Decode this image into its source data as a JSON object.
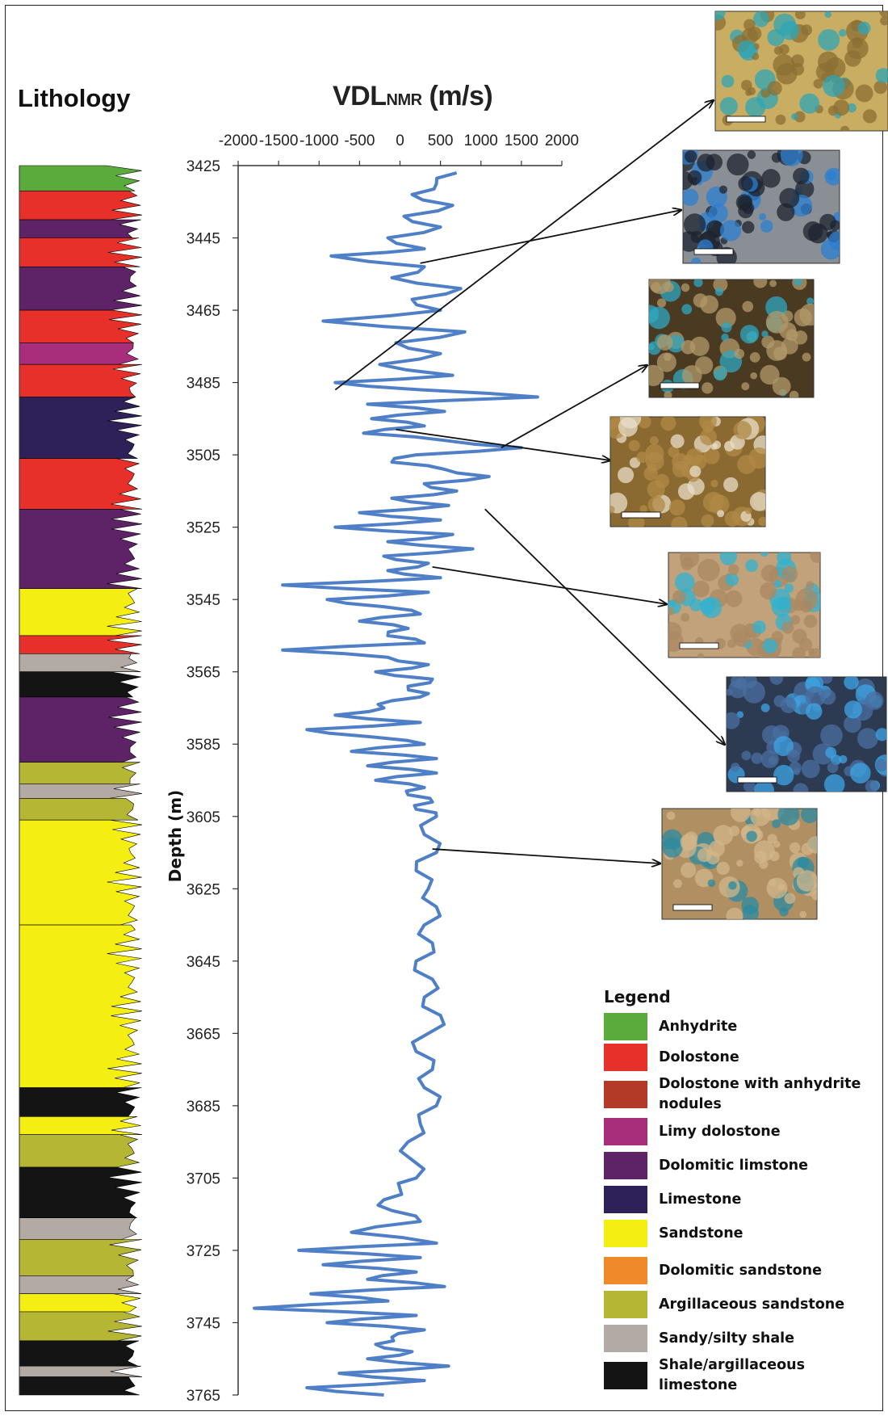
{
  "lithology_title": "Lithology",
  "chart_data": {
    "type": "line",
    "title": "VDL",
    "title_subscript": "NMR",
    "title_unit": " (m/s)",
    "ylabel": "Depth (m)",
    "xlim": [
      -2000,
      2000
    ],
    "ylim": [
      3425,
      3765
    ],
    "x_ticks": [
      "-2000",
      "-1500",
      "-1000",
      "-500",
      "0",
      "500",
      "1000",
      "1500",
      "2000"
    ],
    "y_ticks": [
      "3425",
      "3445",
      "3465",
      "3485",
      "3505",
      "3525",
      "3545",
      "3565",
      "3585",
      "3605",
      "3625",
      "3645",
      "3665",
      "3685",
      "3705",
      "3725",
      "3745",
      "3765"
    ],
    "series": [
      {
        "color": "#4f7fc6",
        "depth": [
          3427,
          3430,
          3433,
          3436,
          3439,
          3442,
          3445,
          3448,
          3450,
          3453,
          3456,
          3459,
          3462,
          3465,
          3468,
          3471,
          3474,
          3477,
          3480,
          3483,
          3485,
          3487,
          3489,
          3491,
          3493,
          3495,
          3497,
          3499,
          3501,
          3503,
          3505,
          3507,
          3509,
          3511,
          3513,
          3515,
          3517,
          3519,
          3521,
          3523,
          3525,
          3527,
          3529,
          3531,
          3533,
          3535,
          3537,
          3539,
          3541,
          3543,
          3545,
          3547,
          3549,
          3551,
          3553,
          3555,
          3557,
          3559,
          3561,
          3563,
          3565,
          3567,
          3569,
          3571,
          3573,
          3575,
          3577,
          3579,
          3581,
          3583,
          3585,
          3587,
          3589,
          3591,
          3593,
          3595,
          3597,
          3599,
          3601,
          3603,
          3605,
          3610,
          3615,
          3620,
          3625,
          3630,
          3635,
          3640,
          3645,
          3650,
          3655,
          3660,
          3665,
          3670,
          3675,
          3680,
          3685,
          3690,
          3695,
          3700,
          3705,
          3708,
          3711,
          3714,
          3717,
          3720,
          3723,
          3725,
          3727,
          3729,
          3731,
          3733,
          3735,
          3737,
          3739,
          3741,
          3743,
          3745,
          3747,
          3749,
          3751,
          3753,
          3755,
          3757,
          3759,
          3761,
          3763,
          3765
        ],
        "vdl": [
          700,
          450,
          150,
          650,
          50,
          500,
          -150,
          300,
          -850,
          300,
          -100,
          750,
          150,
          500,
          -950,
          800,
          -50,
          500,
          -250,
          650,
          -800,
          250,
          1700,
          -400,
          550,
          -350,
          300,
          -450,
          550,
          1500,
          200,
          -100,
          550,
          1100,
          300,
          700,
          -100,
          600,
          -500,
          500,
          -800,
          650,
          -150,
          900,
          -200,
          350,
          -150,
          500,
          -1450,
          350,
          -900,
          -200,
          250,
          -500,
          100,
          -150,
          300,
          -1450,
          -150,
          350,
          -300,
          400,
          100,
          350,
          -100,
          -200,
          -800,
          250,
          -1150,
          -350,
          300,
          -600,
          450,
          -400,
          450,
          -300,
          300,
          100,
          400,
          200,
          450,
          300,
          450,
          200,
          350,
          450,
          300,
          400,
          200,
          400,
          300,
          500,
          350,
          200,
          400,
          300,
          450,
          250,
          100,
          150,
          200,
          0,
          -200,
          -100,
          250,
          -600,
          450,
          -1250,
          250,
          -950,
          200,
          -400,
          550,
          -1100,
          -150,
          -1800,
          200,
          -900,
          300,
          -100,
          -300,
          150,
          -400,
          600,
          -750,
          300,
          -1150,
          -200,
          -1200,
          -500
        ]
      }
    ],
    "lithology_units": [
      {
        "top": 3425,
        "bottom": 3432,
        "unit": "Anhydrite"
      },
      {
        "top": 3432,
        "bottom": 3440,
        "unit": "Dolostone"
      },
      {
        "top": 3440,
        "bottom": 3445,
        "unit": "Dolomitic limstone"
      },
      {
        "top": 3445,
        "bottom": 3453,
        "unit": "Dolostone"
      },
      {
        "top": 3453,
        "bottom": 3465,
        "unit": "Dolomitic limstone"
      },
      {
        "top": 3465,
        "bottom": 3474,
        "unit": "Dolostone"
      },
      {
        "top": 3474,
        "bottom": 3480,
        "unit": "Limy dolostone"
      },
      {
        "top": 3480,
        "bottom": 3489,
        "unit": "Dolostone"
      },
      {
        "top": 3489,
        "bottom": 3506,
        "unit": "Limestone"
      },
      {
        "top": 3506,
        "bottom": 3520,
        "unit": "Dolostone"
      },
      {
        "top": 3520,
        "bottom": 3542,
        "unit": "Dolomitic limstone"
      },
      {
        "top": 3542,
        "bottom": 3555,
        "unit": "Sandstone"
      },
      {
        "top": 3555,
        "bottom": 3560,
        "unit": "Dolostone"
      },
      {
        "top": 3560,
        "bottom": 3565,
        "unit": "Sandy/silty shale"
      },
      {
        "top": 3565,
        "bottom": 3572,
        "unit": "Shale/argillaceous limestone"
      },
      {
        "top": 3572,
        "bottom": 3590,
        "unit": "Dolomitic limstone"
      },
      {
        "top": 3590,
        "bottom": 3596,
        "unit": "Argillaceous sandstone"
      },
      {
        "top": 3596,
        "bottom": 3600,
        "unit": "Sandy/silty shale"
      },
      {
        "top": 3600,
        "bottom": 3606,
        "unit": "Argillaceous sandstone"
      },
      {
        "top": 3606,
        "bottom": 3635,
        "unit": "Sandstone"
      },
      {
        "top": 3635,
        "bottom": 3680,
        "unit": "Sandstone"
      },
      {
        "top": 3680,
        "bottom": 3688,
        "unit": "Shale/argillaceous limestone"
      },
      {
        "top": 3688,
        "bottom": 3693,
        "unit": "Sandstone"
      },
      {
        "top": 3693,
        "bottom": 3702,
        "unit": "Argillaceous sandstone"
      },
      {
        "top": 3702,
        "bottom": 3716,
        "unit": "Shale/argillaceous limestone"
      },
      {
        "top": 3716,
        "bottom": 3722,
        "unit": "Sandy/silty shale"
      },
      {
        "top": 3722,
        "bottom": 3732,
        "unit": "Argillaceous sandstone"
      },
      {
        "top": 3732,
        "bottom": 3737,
        "unit": "Sandy/silty shale"
      },
      {
        "top": 3737,
        "bottom": 3742,
        "unit": "Sandstone"
      },
      {
        "top": 3742,
        "bottom": 3750,
        "unit": "Argillaceous sandstone"
      },
      {
        "top": 3750,
        "bottom": 3757,
        "unit": "Shale/argillaceous limestone"
      },
      {
        "top": 3757,
        "bottom": 3760,
        "unit": "Sandy/silty shale"
      },
      {
        "top": 3760,
        "bottom": 3765,
        "unit": "Shale/argillaceous limestone"
      }
    ],
    "photomicrograph_links": [
      {
        "depth": 3487,
        "vdl": -800,
        "photo": 1
      },
      {
        "depth": 3452,
        "vdl": 250,
        "photo": 2
      },
      {
        "depth": 3503,
        "vdl": 1250,
        "photo": 3
      },
      {
        "depth": 3498,
        "vdl": -50,
        "photo": 4
      },
      {
        "depth": 3536,
        "vdl": 400,
        "photo": 5
      },
      {
        "depth": 3520,
        "vdl": 1050,
        "photo": 6
      },
      {
        "depth": 3614,
        "vdl": 400,
        "photo": 7
      }
    ]
  },
  "legend": {
    "title": "Legend",
    "items": [
      {
        "label": "Anhydrite",
        "color": "#5aaa3c"
      },
      {
        "label": "Dolostone",
        "color": "#e8302a"
      },
      {
        "label": "Dolostone with anhydrite nodules",
        "color": "#b23a26"
      },
      {
        "label": "Limy dolostone",
        "color": "#a82e7c"
      },
      {
        "label": "Dolomitic limstone",
        "color": "#5e2366"
      },
      {
        "label": "Limestone",
        "color": "#2e2058"
      },
      {
        "label": "Sandstone",
        "color": "#f5ee12"
      },
      {
        "label": "Dolomitic sandstone",
        "color": "#ef8a2b"
      },
      {
        "label": "Argillaceous sandstone",
        "color": "#b4b634"
      },
      {
        "label": "Sandy/silty shale",
        "color": "#b3aba3"
      },
      {
        "label": "Shale/argillaceous limestone",
        "color": "#141414"
      }
    ]
  },
  "photomicrographs": [
    {
      "id": 1,
      "palette": [
        "#c9ad62",
        "#8b6f33",
        "#2ea6b6"
      ]
    },
    {
      "id": 2,
      "palette": [
        "#8a8f95",
        "#1c2430",
        "#2b7fd0"
      ]
    },
    {
      "id": 3,
      "palette": [
        "#4a3a22",
        "#b39a6a",
        "#2fa8c0"
      ]
    },
    {
      "id": 4,
      "palette": [
        "#8a6a30",
        "#b08a46",
        "#e8dfc8"
      ]
    },
    {
      "id": 5,
      "palette": [
        "#c2a27a",
        "#a98863",
        "#2fb2d2"
      ]
    },
    {
      "id": 6,
      "palette": [
        "#2c3a52",
        "#4a6fa0",
        "#3da6e6"
      ]
    },
    {
      "id": 7,
      "palette": [
        "#b08f63",
        "#d1b58a",
        "#2a8aa0"
      ]
    }
  ]
}
